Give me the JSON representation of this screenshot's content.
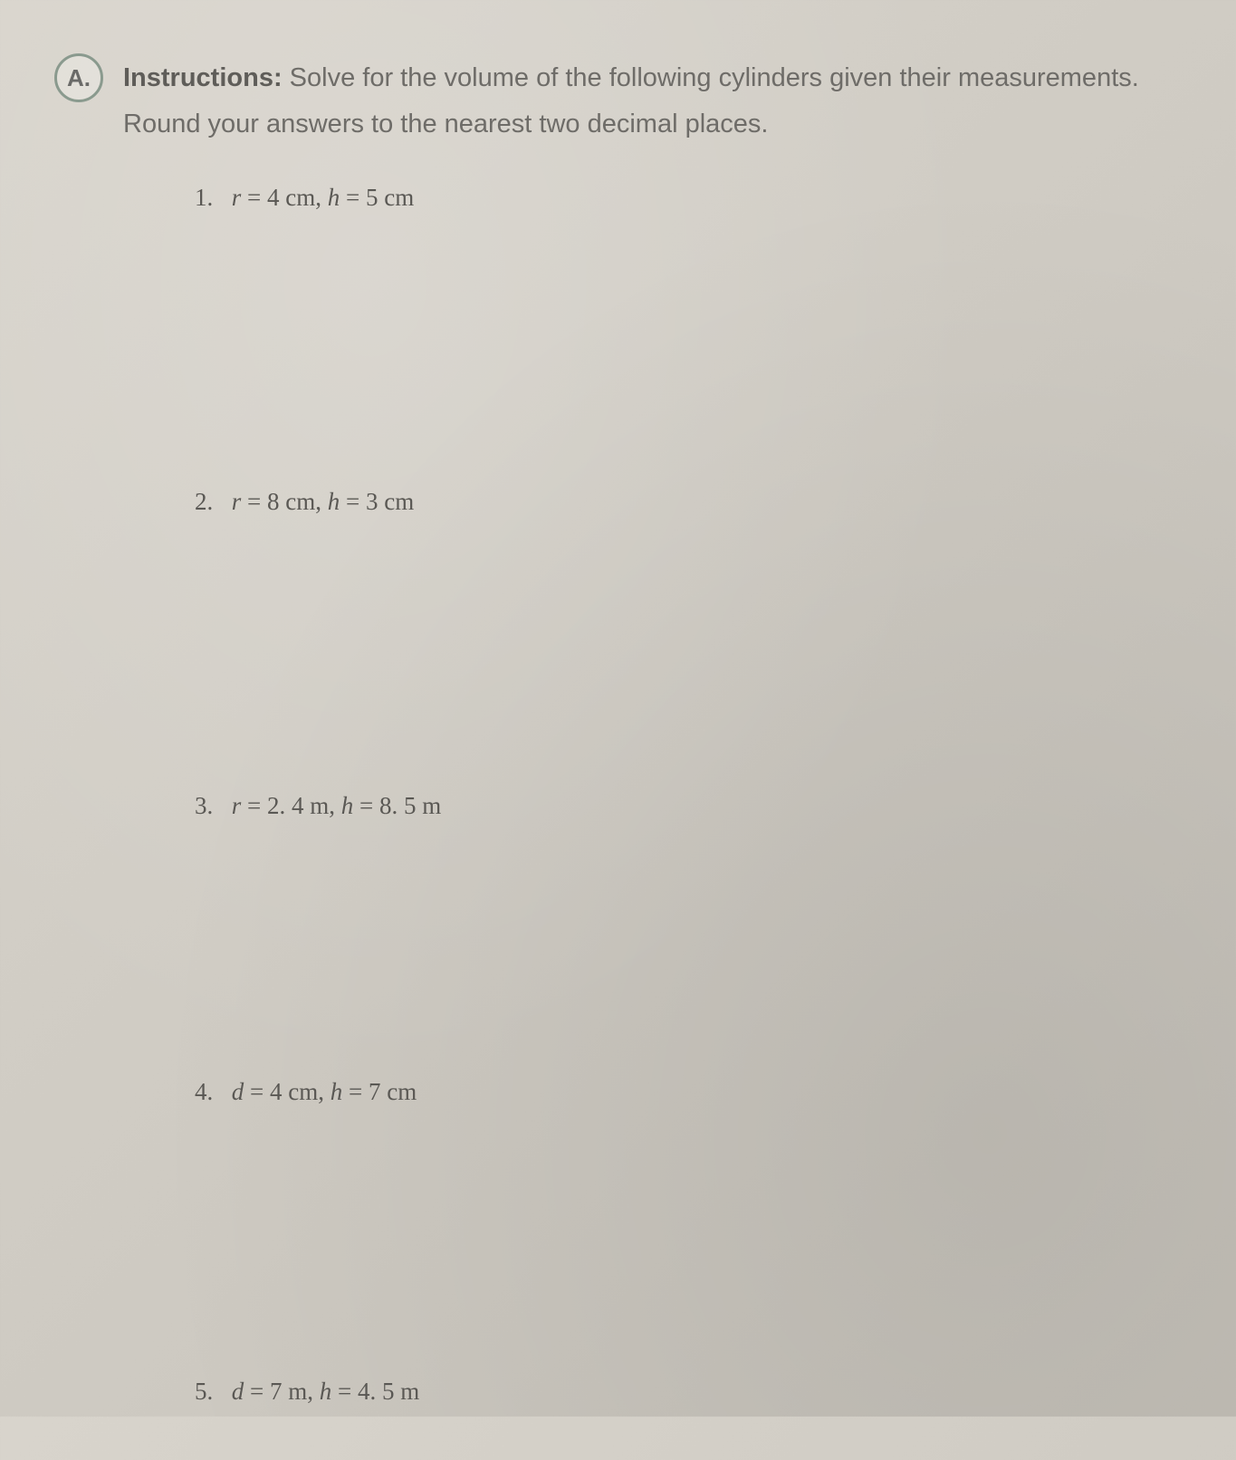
{
  "section": {
    "badge": "A.",
    "instructions_label": "Instructions:",
    "instructions_text": " Solve for the volume of the following cylinders given their measurements. Round your answers to the nearest two decimal places."
  },
  "problems": [
    {
      "number": "1.",
      "var1_name": "r",
      "var1_value": "4 cm",
      "var2_name": "h",
      "var2_value": "5 cm"
    },
    {
      "number": "2.",
      "var1_name": "r",
      "var1_value": "8 cm",
      "var2_name": "h",
      "var2_value": "3 cm"
    },
    {
      "number": "3.",
      "var1_name": "r",
      "var1_value": "2. 4 m",
      "var2_name": "h",
      "var2_value": "8. 5 m"
    },
    {
      "number": "4.",
      "var1_name": "d",
      "var1_value": "4 cm",
      "var2_name": "h",
      "var2_value": "7 cm"
    },
    {
      "number": "5.",
      "var1_name": "d",
      "var1_value": "7 m",
      "var2_name": "h",
      "var2_value": "4. 5 m"
    }
  ],
  "style": {
    "background_color_start": "#d8d4cc",
    "background_color_end": "#c5c1b9",
    "text_color": "#6e6c68",
    "badge_border_color": "#8a9a8e",
    "body_font_size": 29,
    "problem_font_size": 27
  }
}
